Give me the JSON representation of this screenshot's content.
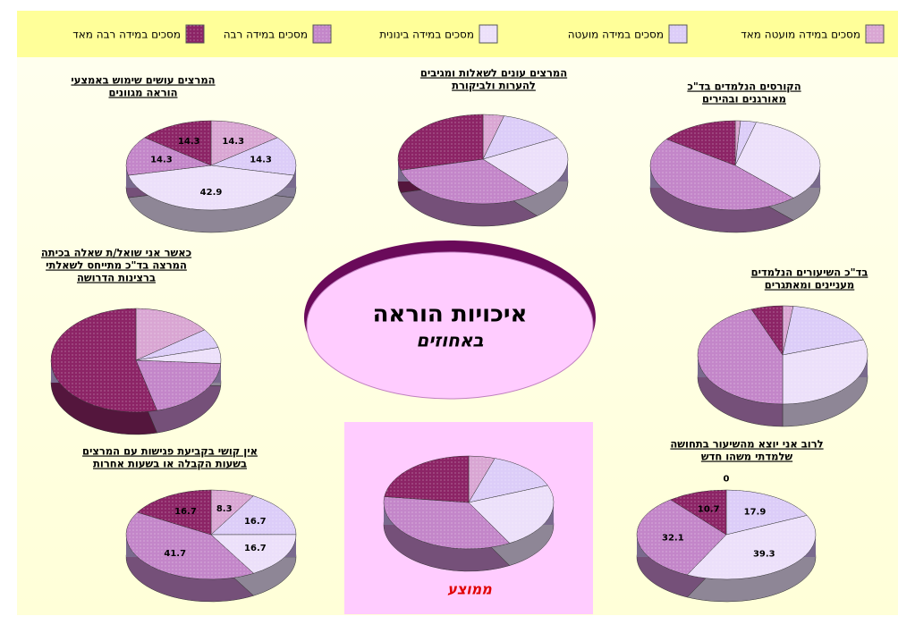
{
  "legend": {
    "labels": [
      "מסכים במידה מועטה מאד",
      "מסכים במידה מועטה",
      "מסכים במידה בינונית",
      "מסכים במידה רבה",
      "מסכים במידה רבה מאד"
    ],
    "colors": [
      "#d9a6d3",
      "#dccdf8",
      "#ece0fa",
      "#c386c9",
      "#8c2466"
    ]
  },
  "center": {
    "title": "איכויות הוראה",
    "subtitle": "באחוזים"
  },
  "chart_data": [
    {
      "type": "pie",
      "title": [
        "המרצים עושים שימוש באמצעי",
        "הוראה מגוונים"
      ],
      "values": [
        14.3,
        14.3,
        42.9,
        14.3,
        14.3
      ],
      "data_labels": true
    },
    {
      "type": "pie",
      "title": [
        "המרצים עונים לשאלות ומגיבים",
        "להערות ולביקורת"
      ],
      "values": [
        4,
        13,
        22,
        32,
        29
      ],
      "data_labels": false
    },
    {
      "type": "pie",
      "title": [
        "הקורסים הנלמדים בד\"כ",
        "מאורגנים ובהירים"
      ],
      "values": [
        1,
        3,
        34,
        47,
        15
      ],
      "data_labels": false
    },
    {
      "type": "pie",
      "title": [
        "כאשר אני שואל/ת שאלה בכיתה",
        "המרצה בד\"כ מתייחס לשאלתי",
        "ברצינות הדרושה"
      ],
      "values": [
        15,
        6,
        5,
        20,
        54
      ],
      "data_labels": false
    },
    {
      "type": "pie",
      "title": [
        "בד\"כ השיעורים הנלמדים",
        "מעניינים ומאתגרים"
      ],
      "values": [
        2,
        18,
        30,
        44,
        6
      ],
      "data_labels": false
    },
    {
      "type": "pie",
      "title": [
        "אין קושי בקביעת פגישות עם המרצים",
        "בשעות הקבלה או בשעות אחרות"
      ],
      "values": [
        8.3,
        16.7,
        16.7,
        41.7,
        16.7
      ],
      "data_labels": true
    },
    {
      "type": "pie",
      "title": [
        "לרוב אני יוצא מהשיעור בתחושה",
        "שלמדתי משהו חדש"
      ],
      "values": [
        0,
        17.9,
        39.3,
        32.1,
        10.7
      ],
      "data_labels": true
    },
    {
      "type": "pie",
      "title": [
        "ממוצע"
      ],
      "values": [
        5,
        14,
        23,
        35,
        23
      ],
      "data_labels": false
    }
  ]
}
